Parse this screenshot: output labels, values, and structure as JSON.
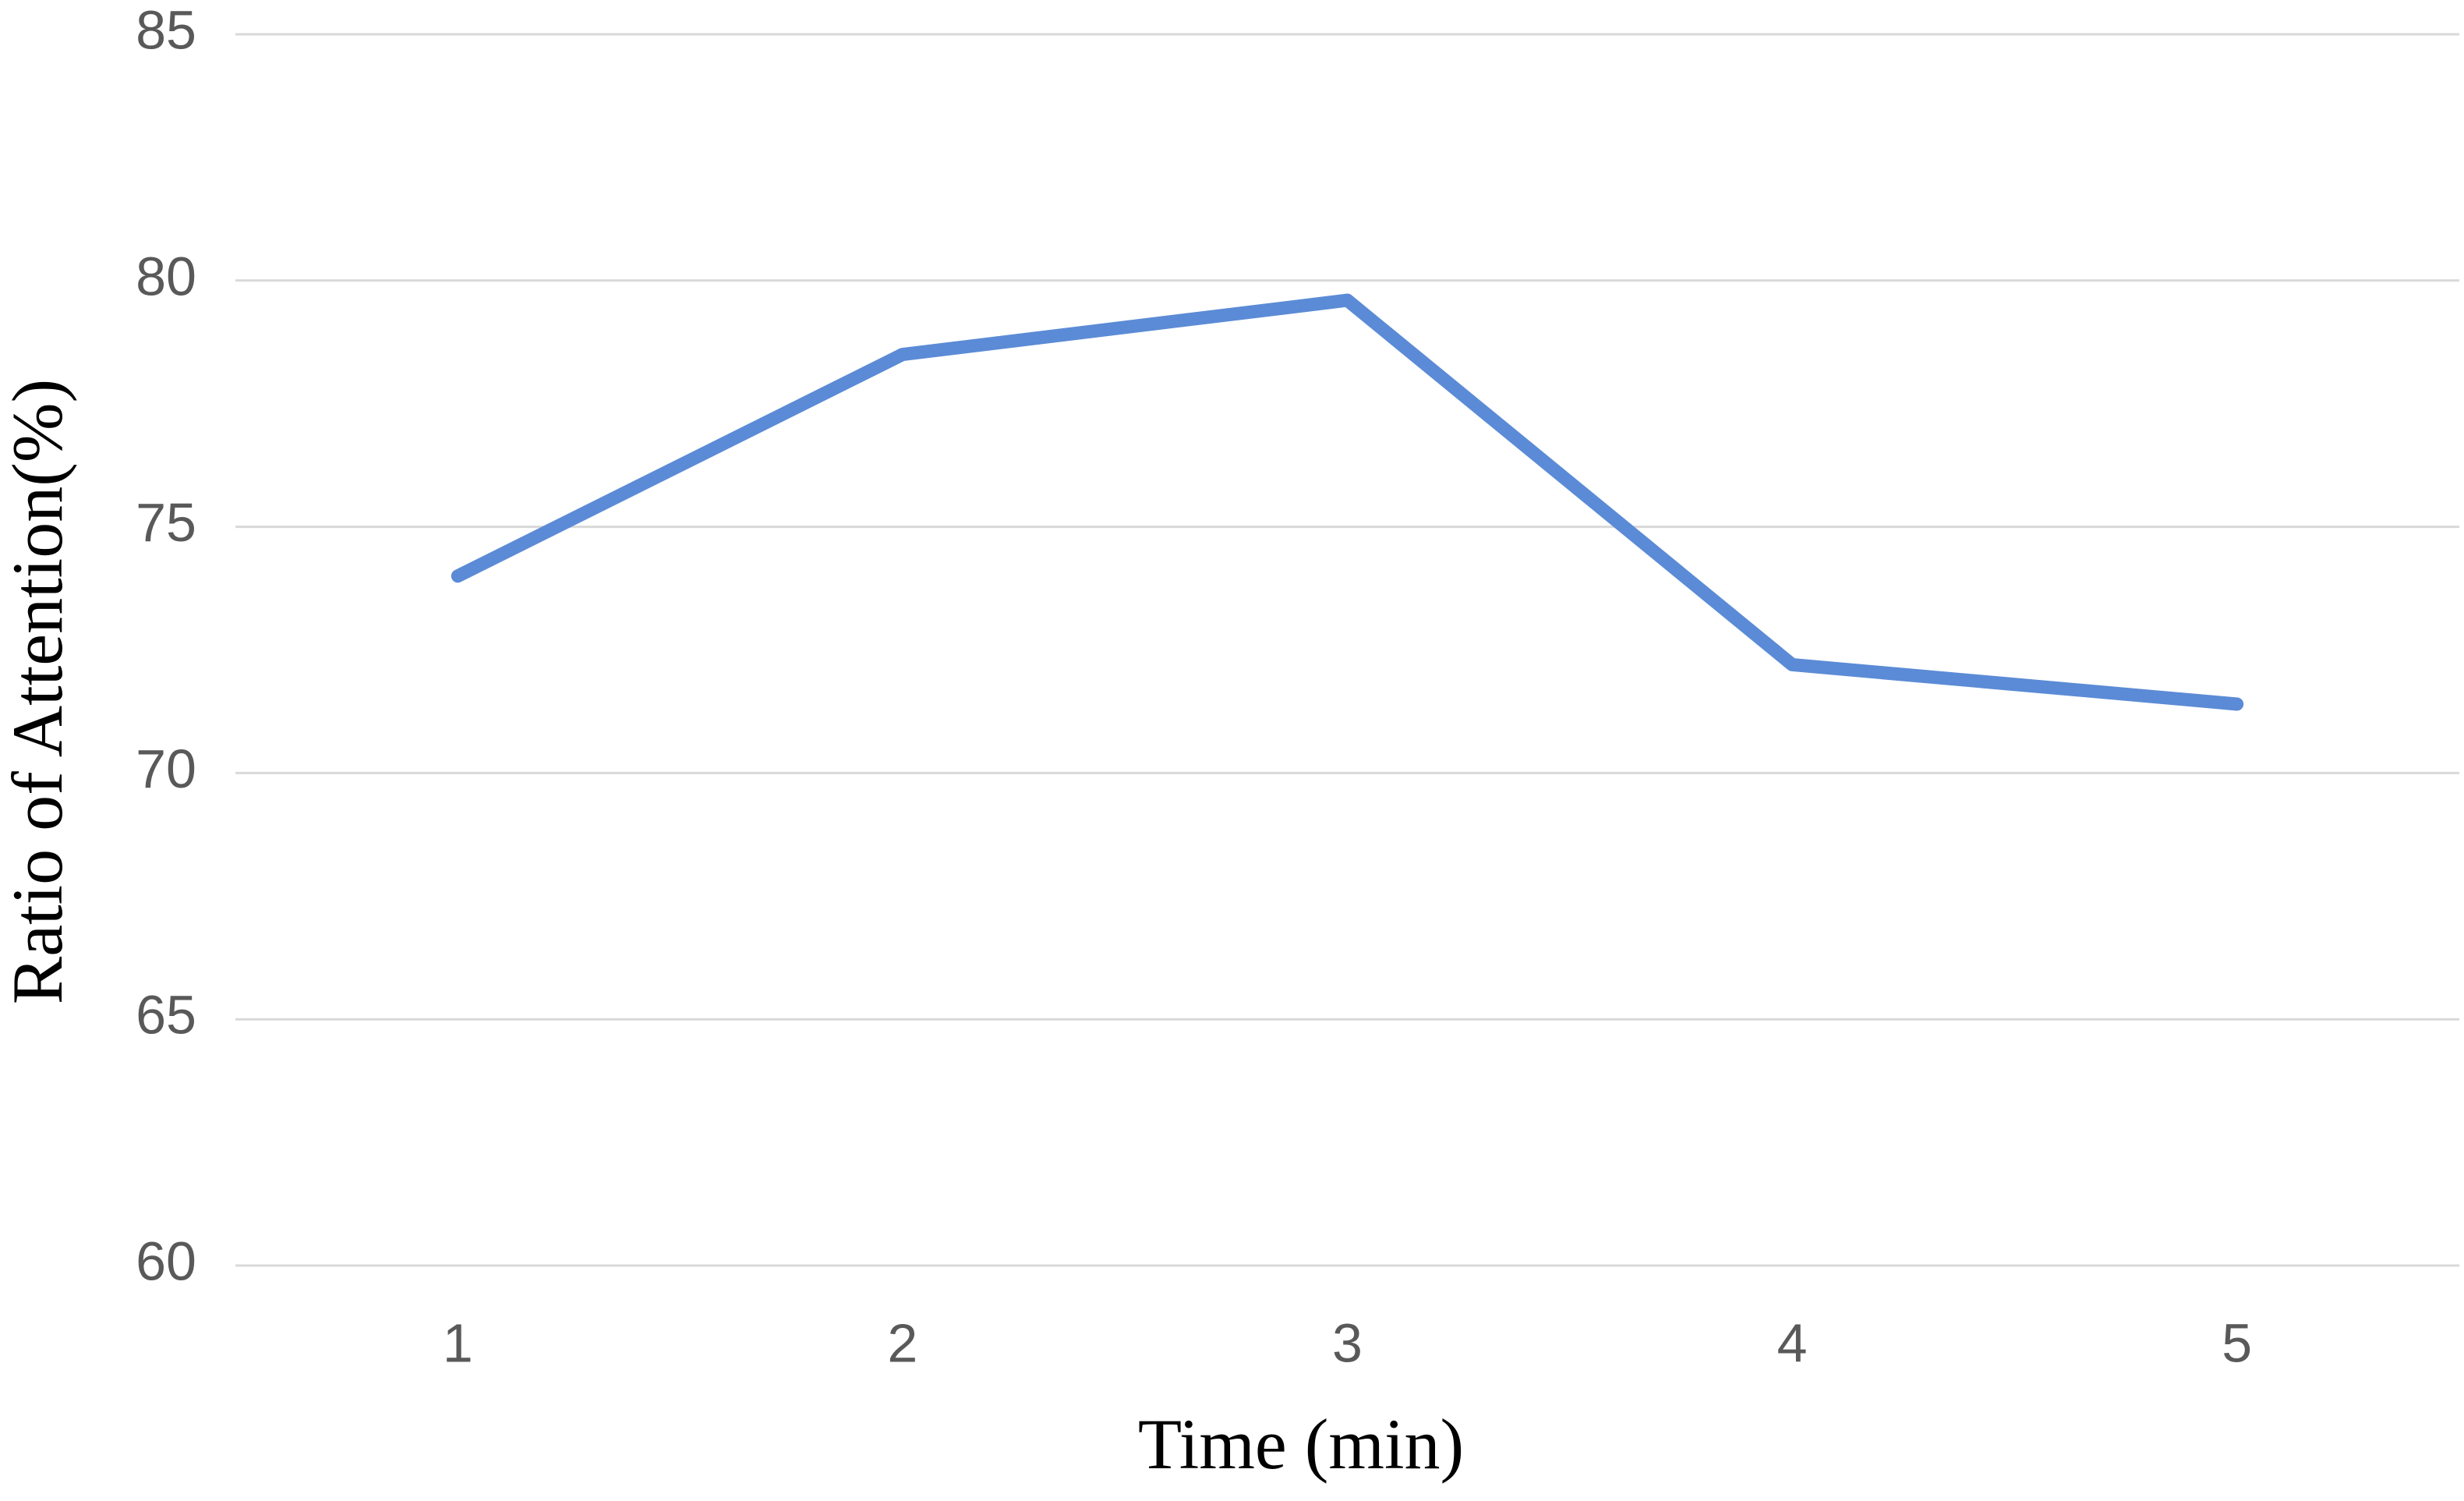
{
  "chart_data": {
    "type": "line",
    "x_label": "Time (min)",
    "y_label": "Ratio of Attention(%)",
    "categories": [
      "1",
      "2",
      "3",
      "4",
      "5"
    ],
    "series": [
      {
        "name": "Ratio of Attention",
        "color": "#5b8bd6",
        "values": [
          74.0,
          78.5,
          79.6,
          72.2,
          71.4
        ]
      }
    ],
    "ylim": [
      60,
      85
    ],
    "yticks": [
      60,
      65,
      70,
      75,
      80,
      85
    ],
    "grid": true,
    "legend": false
  }
}
